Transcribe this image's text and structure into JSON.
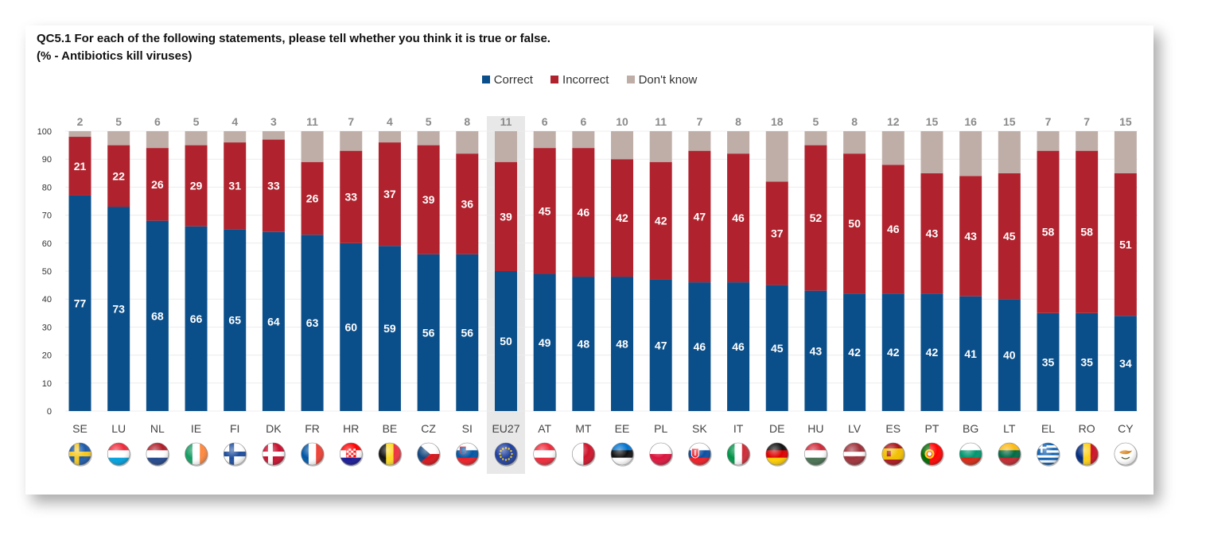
{
  "title_line1": "QC5.1 For each of the following statements, please tell whether you think it is true or false.",
  "title_line2": "(%  - Antibiotics kill viruses)",
  "chart_data": {
    "type": "bar",
    "stacked": true,
    "categories": [
      "SE",
      "LU",
      "NL",
      "IE",
      "FI",
      "DK",
      "FR",
      "HR",
      "BE",
      "CZ",
      "SI",
      "EU27",
      "AT",
      "MT",
      "EE",
      "PL",
      "SK",
      "IT",
      "DE",
      "HU",
      "LV",
      "ES",
      "PT",
      "BG",
      "LT",
      "EL",
      "RO",
      "CY"
    ],
    "highlight_category": "EU27",
    "ylim": [
      0,
      100
    ],
    "yticks": [
      0,
      10,
      20,
      30,
      40,
      50,
      60,
      70,
      80,
      90,
      100
    ],
    "legend_position": "top-center",
    "series": [
      {
        "name": "Correct",
        "color": "#0b4f8a",
        "values": [
          77,
          73,
          68,
          66,
          65,
          64,
          63,
          60,
          59,
          56,
          56,
          50,
          49,
          48,
          48,
          47,
          46,
          46,
          45,
          43,
          42,
          42,
          42,
          41,
          40,
          35,
          35,
          34
        ]
      },
      {
        "name": "Incorrect",
        "color": "#b0232e",
        "values": [
          21,
          22,
          26,
          29,
          31,
          33,
          26,
          33,
          37,
          39,
          36,
          39,
          45,
          46,
          42,
          42,
          47,
          46,
          37,
          52,
          50,
          46,
          43,
          43,
          45,
          58,
          58,
          51
        ]
      },
      {
        "name": "Don't know",
        "color": "#bfaea8",
        "values": [
          2,
          5,
          6,
          5,
          4,
          3,
          11,
          7,
          4,
          5,
          8,
          11,
          6,
          6,
          10,
          11,
          7,
          8,
          18,
          5,
          8,
          12,
          15,
          16,
          15,
          7,
          7,
          15
        ]
      }
    ],
    "flags": [
      "sweden",
      "luxembourg",
      "netherlands",
      "ireland",
      "finland",
      "denmark",
      "france",
      "croatia",
      "belgium",
      "czechia",
      "slovenia",
      "eu",
      "austria",
      "malta",
      "estonia",
      "poland",
      "slovakia",
      "italy",
      "germany",
      "hungary",
      "latvia",
      "spain",
      "portugal",
      "bulgaria",
      "lithuania",
      "greece",
      "romania",
      "cyprus"
    ]
  }
}
